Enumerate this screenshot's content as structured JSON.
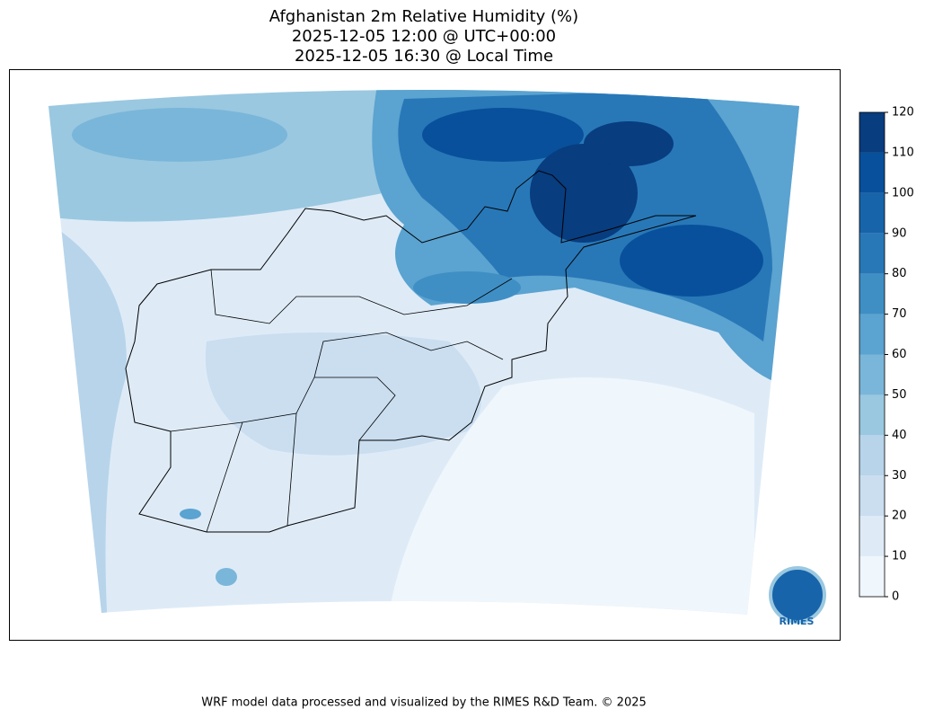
{
  "title": [
    "Afghanistan 2m Relative Humidity (%)",
    "2025-12-05 12:00 @ UTC+00:00",
    "2025-12-05 16:30 @ Local Time"
  ],
  "colorbar": {
    "ticks": [
      0,
      10,
      20,
      30,
      40,
      50,
      60,
      70,
      80,
      90,
      100,
      110,
      120
    ],
    "colors": [
      "#eff6fc",
      "#deebf7",
      "#cadef0",
      "#b7d4ea",
      "#9ac8e0",
      "#7ab6d9",
      "#5ba3d0",
      "#3f8fc5",
      "#2878b8",
      "#1764ab",
      "#08509b",
      "#083d7f"
    ]
  },
  "logo": "RIMES",
  "footer": "WRF model data processed and visualized by the RIMES R&D Team. © 2025"
}
